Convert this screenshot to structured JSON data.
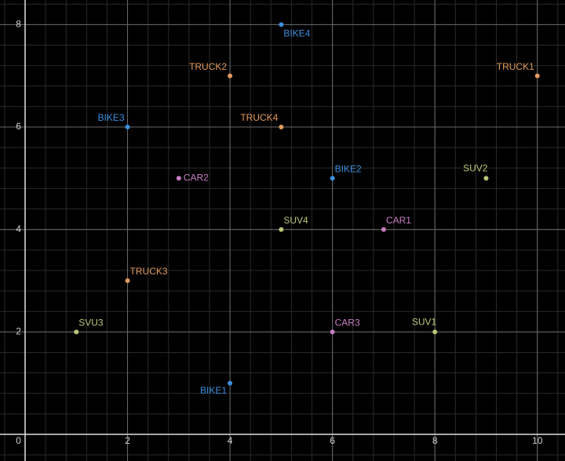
{
  "chart_data": {
    "type": "scatter",
    "x": [
      5,
      4,
      10,
      2,
      5,
      3,
      6,
      9,
      5,
      7,
      2,
      1,
      6,
      8,
      4
    ],
    "values": [
      8,
      7,
      7,
      6,
      6,
      5,
      5,
      5,
      4,
      4,
      3,
      2,
      2,
      2,
      1
    ],
    "point_labels": [
      "BIKE4",
      "TRUCK2",
      "TRUCK1",
      "BIKE3",
      "TRUCK4",
      "CAR2",
      "BIKE2",
      "SUV2",
      "SUV4",
      "CAR1",
      "TRUCK3",
      "SVU3",
      "CAR3",
      "SUV1",
      "BIKE1"
    ],
    "colors": [
      "#3d8fe0",
      "#e39a5c",
      "#e39a5c",
      "#3d8fe0",
      "#e39a5c",
      "#c97dc2",
      "#3d8fe0",
      "#bcc676",
      "#bcc676",
      "#c97dc2",
      "#e39a5c",
      "#bcc676",
      "#c97dc2",
      "#bcc676",
      "#3d8fe0"
    ],
    "xlim": [
      -0.49,
      10.54
    ],
    "ylim": [
      -0.52,
      8.48
    ],
    "xticks": [
      0,
      2,
      4,
      6,
      8,
      10
    ],
    "yticks": [
      2,
      4,
      6,
      8
    ],
    "grid": true,
    "minor_grid": true
  }
}
